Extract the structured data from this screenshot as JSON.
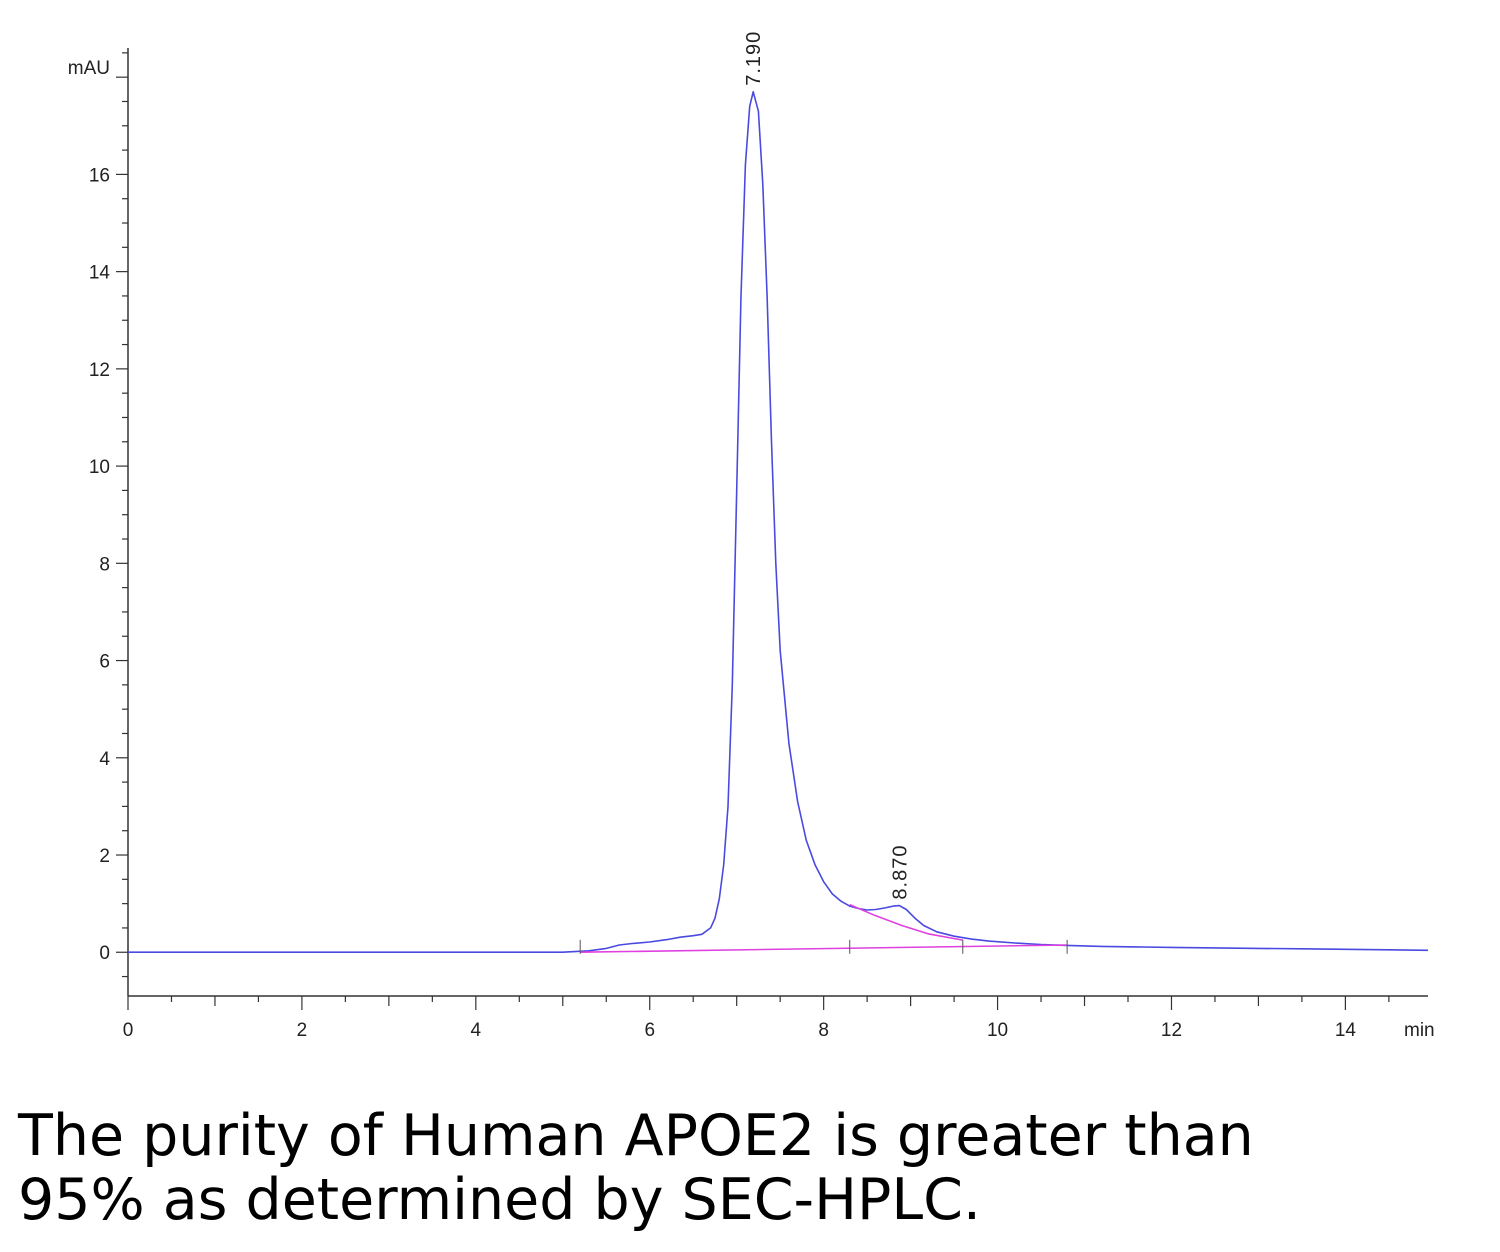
{
  "chart_data": {
    "type": "line",
    "x_unit_label": "min",
    "y_unit_label": "mAU",
    "x_ticks": [
      "0",
      "2",
      "4",
      "6",
      "8",
      "10",
      "12",
      "14"
    ],
    "y_ticks": [
      "0",
      "2",
      "4",
      "6",
      "8",
      "10",
      "12",
      "14",
      "16"
    ],
    "xlim": [
      0,
      14.95
    ],
    "ylim": [
      -0.9,
      18.6
    ],
    "grid": false,
    "series": [
      {
        "color": "#4a4ae0",
        "x": [
          0,
          5.0,
          5.3,
          5.5,
          5.65,
          5.8,
          6.0,
          6.2,
          6.35,
          6.5,
          6.6,
          6.7,
          6.75,
          6.8,
          6.85,
          6.9,
          6.95,
          7.0,
          7.05,
          7.1,
          7.15,
          7.19,
          7.25,
          7.3,
          7.35,
          7.4,
          7.45,
          7.5,
          7.6,
          7.7,
          7.8,
          7.9,
          8.0,
          8.1,
          8.2,
          8.3,
          8.4,
          8.5,
          8.6,
          8.7,
          8.8,
          8.87,
          8.95,
          9.05,
          9.15,
          9.3,
          9.5,
          9.7,
          9.9,
          10.2,
          10.5,
          10.8,
          11.2,
          11.6,
          12.0,
          12.5,
          13.0,
          13.5,
          14.0,
          14.5,
          14.95
        ],
        "y": [
          0.0,
          0.0,
          0.03,
          0.08,
          0.15,
          0.18,
          0.21,
          0.26,
          0.31,
          0.34,
          0.37,
          0.5,
          0.7,
          1.1,
          1.8,
          3.0,
          5.5,
          9.5,
          13.5,
          16.2,
          17.4,
          17.7,
          17.3,
          15.8,
          13.5,
          10.5,
          8.0,
          6.2,
          4.3,
          3.1,
          2.3,
          1.8,
          1.45,
          1.2,
          1.05,
          0.95,
          0.9,
          0.87,
          0.88,
          0.91,
          0.95,
          0.96,
          0.88,
          0.7,
          0.55,
          0.42,
          0.33,
          0.27,
          0.23,
          0.19,
          0.16,
          0.14,
          0.12,
          0.11,
          0.1,
          0.09,
          0.08,
          0.07,
          0.06,
          0.05,
          0.04
        ]
      },
      {
        "color": "#e040e0",
        "x": [
          5.2,
          10.8
        ],
        "y": [
          0.0,
          0.15
        ]
      },
      {
        "color": "#e040e0",
        "x": [
          8.3,
          8.6,
          8.9,
          9.2,
          9.6
        ],
        "y": [
          0.98,
          0.75,
          0.55,
          0.38,
          0.25
        ]
      }
    ],
    "annotations": [
      {
        "text": "7.190",
        "x": 7.19,
        "y": 17.7
      },
      {
        "text": "8.870",
        "x": 8.87,
        "y": 0.96
      }
    ],
    "baseline_marks_x": [
      5.2,
      8.3,
      9.6,
      10.8
    ]
  },
  "caption": {
    "line1": "The purity of Human APOE2 is greater than",
    "line2": "95% as determined by SEC-HPLC."
  }
}
